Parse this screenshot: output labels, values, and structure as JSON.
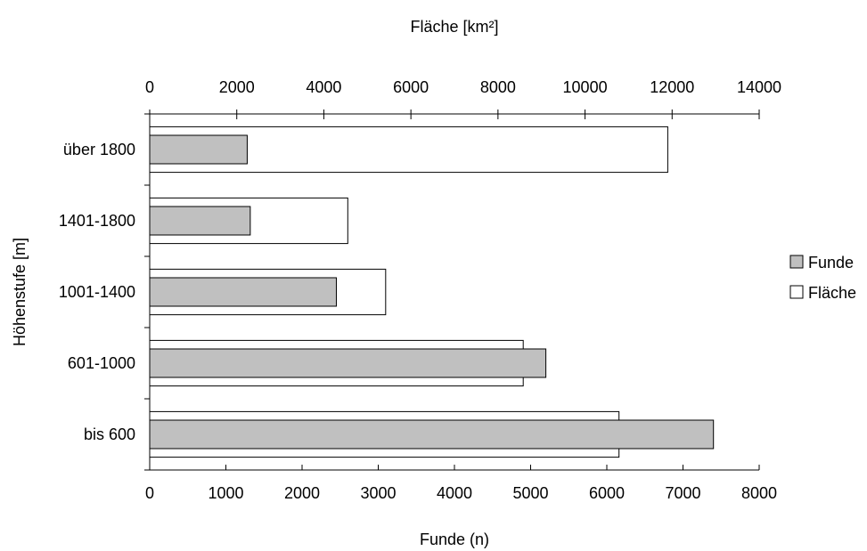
{
  "chart_data": {
    "type": "bar",
    "orientation": "horizontal",
    "categories": [
      "über 1800",
      "1401-1800",
      "1001-1400",
      "601-1000",
      "bis 600"
    ],
    "series": [
      {
        "name": "Funde",
        "axis": "bottom",
        "color": "#c0c0c0",
        "values": [
          1280,
          1320,
          2450,
          5200,
          7400
        ]
      },
      {
        "name": "Fläche",
        "axis": "top",
        "color": "#ffffff",
        "values": [
          11900,
          4550,
          5420,
          8580,
          10780
        ]
      }
    ],
    "xlabel": "Funde (n)",
    "x2label": "Fläche [km²]",
    "ylabel": "Höhenstufe [m]",
    "xlim": [
      0,
      8000
    ],
    "x2lim": [
      0,
      14000
    ],
    "xticks": [
      "0",
      "1000",
      "2000",
      "3000",
      "4000",
      "5000",
      "6000",
      "7000",
      "8000"
    ],
    "x2ticks": [
      "0",
      "2000",
      "4000",
      "6000",
      "8000",
      "10000",
      "12000",
      "14000"
    ],
    "grid": false,
    "legend_position": "right"
  }
}
